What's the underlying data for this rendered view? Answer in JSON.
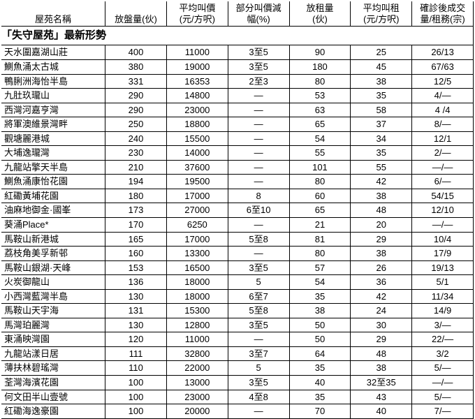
{
  "title": "「失守屋苑」最新形勢",
  "columns": [
    "屋苑名稱",
    "放盤量(伙)",
    "平均叫價\n(元/方呎)",
    "部分叫價減\n幅(%)",
    "放租量\n(伙)",
    "平均叫租\n(元/方呎)",
    "確診後成交\n量/租務(宗)"
  ],
  "rows": [
    [
      "天水圍嘉湖山莊",
      "400",
      "11000",
      "3至5",
      "90",
      "25",
      "26/13"
    ],
    [
      "鰂魚涌太古城",
      "380",
      "19000",
      "3至5",
      "180",
      "45",
      "67/63"
    ],
    [
      "鴨脷洲海怡半島",
      "331",
      "16353",
      "2至3",
      "80",
      "38",
      "12/5"
    ],
    [
      "九肚玖瓏山",
      "290",
      "14800",
      "—",
      "53",
      "35",
      "4/—"
    ],
    [
      "西灣河嘉亨灣",
      "290",
      "23000",
      "—",
      "63",
      "58",
      "4 /4"
    ],
    [
      "將軍澳維景灣畔",
      "250",
      "18800",
      "—",
      "65",
      "37",
      "8/—"
    ],
    [
      "觀塘麗港城",
      "240",
      "15500",
      "—",
      "54",
      "34",
      "12/1"
    ],
    [
      "大埔逸瓏灣",
      "230",
      "14000",
      "—",
      "55",
      "35",
      "2/—"
    ],
    [
      "九龍站擎天半島",
      "210",
      "37600",
      "—",
      "101",
      "55",
      "—/—"
    ],
    [
      "鰂魚涌康怡花園",
      "194",
      "19500",
      "—",
      "80",
      "42",
      "6/—"
    ],
    [
      "紅磡黃埔花園",
      "180",
      "17000",
      "8",
      "60",
      "38",
      "54/15"
    ],
    [
      "油麻地御金·國峯",
      "173",
      "27000",
      "6至10",
      "65",
      "48",
      "12/10"
    ],
    [
      "葵涌Place*",
      "170",
      "6250",
      "—",
      "21",
      "20",
      "—/—"
    ],
    [
      "馬鞍山新港城",
      "165",
      "17000",
      "5至8",
      "81",
      "29",
      "10/4"
    ],
    [
      "荔枝角美孚新邨",
      "160",
      "13300",
      "—",
      "80",
      "38",
      "17/9"
    ],
    [
      "馬鞍山銀湖·天峰",
      "153",
      "16500",
      "3至5",
      "57",
      "26",
      "19/13"
    ],
    [
      "火炭御龍山",
      "136",
      "18000",
      "5",
      "54",
      "36",
      "5/1"
    ],
    [
      "小西灣藍灣半島",
      "130",
      "18000",
      "6至7",
      "35",
      "42",
      "11/34"
    ],
    [
      "馬鞍山天宇海",
      "131",
      "15300",
      "5至8",
      "38",
      "24",
      "14/9"
    ],
    [
      "馬灣珀麗灣",
      "130",
      "12800",
      "3至5",
      "50",
      "30",
      "3/—"
    ],
    [
      "東涌映灣園",
      "120",
      "11000",
      "—",
      "50",
      "29",
      "22/—"
    ],
    [
      "九龍站漾日居",
      "111",
      "32800",
      "3至7",
      "64",
      "48",
      "3/2"
    ],
    [
      "薄扶林碧瑤灣",
      "110",
      "22000",
      "5",
      "35",
      "38",
      "5/—"
    ],
    [
      "荃灣海濱花園",
      "100",
      "13000",
      "3至5",
      "40",
      "32至35",
      "—/—"
    ],
    [
      "何文田半山壹號",
      "100",
      "23000",
      "4至8",
      "35",
      "43",
      "5/—"
    ],
    [
      "紅磡海逸豪園",
      "100",
      "20000",
      "—",
      "70",
      "40",
      "7/—"
    ]
  ],
  "style": {
    "background_color": "#ffffff",
    "border_color": "#000000",
    "title_fontsize": 15,
    "header_fontsize": 13,
    "cell_fontsize": 13,
    "col_widths_pct": [
      22,
      13,
      13,
      13,
      13,
      13,
      13
    ],
    "body_align": [
      "left",
      "center",
      "center",
      "center",
      "center",
      "center",
      "center"
    ]
  }
}
